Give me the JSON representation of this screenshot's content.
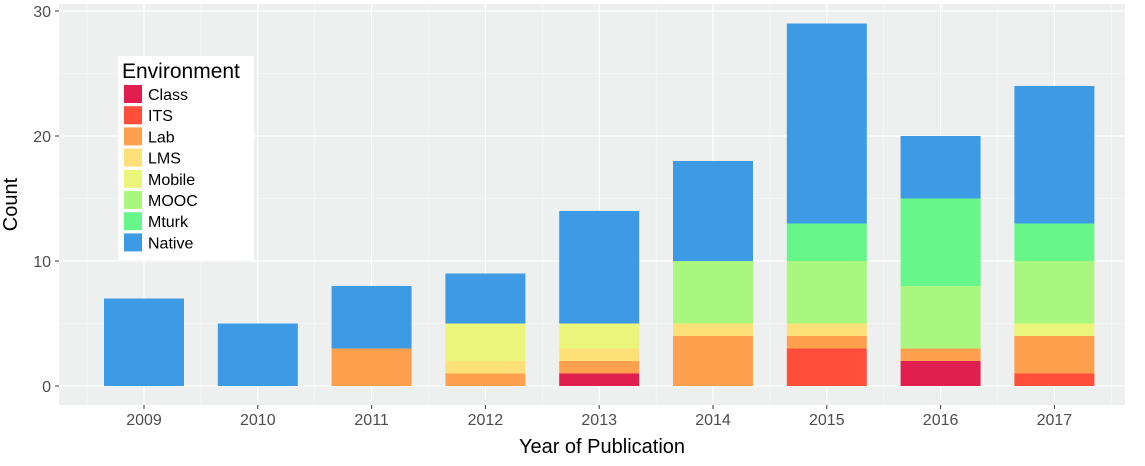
{
  "chart_data": {
    "type": "bar",
    "stacked": true,
    "xlabel": "Year of Publication",
    "ylabel": "Count",
    "ylim": [
      0,
      30
    ],
    "yticks": [
      0,
      10,
      20,
      30
    ],
    "grid": true,
    "categories": [
      "2009",
      "2010",
      "2011",
      "2012",
      "2013",
      "2014",
      "2015",
      "2016",
      "2017"
    ],
    "legend": {
      "title": "Environment",
      "position": "top-left"
    },
    "series": [
      {
        "name": "Class",
        "color": "#e01f4f",
        "values": [
          0,
          0,
          0,
          0,
          1,
          0,
          0,
          2,
          0
        ]
      },
      {
        "name": "ITS",
        "color": "#ff4f3b",
        "values": [
          0,
          0,
          0,
          0,
          0,
          0,
          3,
          0,
          1
        ]
      },
      {
        "name": "Lab",
        "color": "#ffa04e",
        "values": [
          0,
          0,
          3,
          1,
          1,
          4,
          1,
          1,
          3
        ]
      },
      {
        "name": "LMS",
        "color": "#fde078",
        "values": [
          0,
          0,
          0,
          1,
          1,
          1,
          1,
          0,
          0
        ]
      },
      {
        "name": "Mobile",
        "color": "#ebf57a",
        "values": [
          0,
          0,
          0,
          3,
          2,
          0,
          0,
          0,
          1
        ]
      },
      {
        "name": "MOOC",
        "color": "#a9f77e",
        "values": [
          0,
          0,
          0,
          0,
          0,
          5,
          5,
          5,
          5
        ]
      },
      {
        "name": "Mturk",
        "color": "#66f68a",
        "values": [
          0,
          0,
          0,
          0,
          0,
          0,
          3,
          7,
          3
        ]
      },
      {
        "name": "Native",
        "color": "#3d9be5",
        "values": [
          7,
          5,
          5,
          4,
          9,
          8,
          16,
          5,
          11
        ]
      }
    ]
  }
}
